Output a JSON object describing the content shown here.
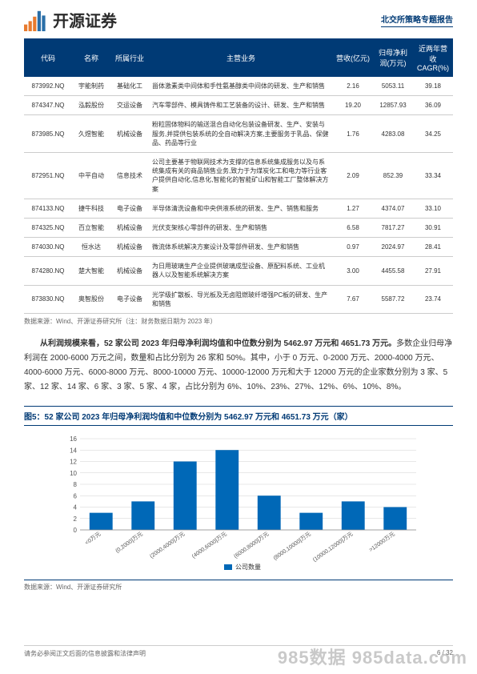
{
  "header": {
    "company_name": "开源证券",
    "report_type": "北交所策略专题报告"
  },
  "table": {
    "columns": [
      "代码",
      "名称",
      "所属行业",
      "主营业务",
      "营收(亿元)",
      "归母净利润(万元)",
      "近两年营收CAGR(%)"
    ],
    "rows": [
      {
        "code": "873992.NQ",
        "name": "宇能制药",
        "ind": "基础化工",
        "biz": "甾体激素类中间体和手性氨基醇类中间体的研发、生产和销售",
        "rev": "2.16",
        "prof": "5053.11",
        "cagr": "39.18"
      },
      {
        "code": "874347.NQ",
        "name": "泓毅股份",
        "ind": "交运设备",
        "biz": "汽车零部件、模具铸件和工艺装备的设计、研发、生产和销售",
        "rev": "19.20",
        "prof": "12857.93",
        "cagr": "36.09"
      },
      {
        "code": "873985.NQ",
        "name": "久煜智能",
        "ind": "机械设备",
        "biz": "粉粒固体物料的输送混合自动化包装设备研发、生产、安装与服务,并提供包装系统的全自动解决方案,主要服务于乳品、保健品、药品等行业",
        "rev": "1.76",
        "prof": "4283.08",
        "cagr": "34.25"
      },
      {
        "code": "872951.NQ",
        "name": "中平自动",
        "ind": "信息技术",
        "biz": "公司主要基于物联网技术为支撑的信息系统集成服务以及与系统集成有关的商品销售业务,致力于为煤炭化工和电力等行业客户提供自动化,信息化,智能化的智能矿山和智能工厂整体解决方案",
        "rev": "2.09",
        "prof": "852.39",
        "cagr": "33.34"
      },
      {
        "code": "874133.NQ",
        "name": "捷牛科技",
        "ind": "电子设备",
        "biz": "半导体清洗设备和中央供液系统的研发、生产、销售和服务",
        "rev": "1.27",
        "prof": "4374.07",
        "cagr": "33.10"
      },
      {
        "code": "874325.NQ",
        "name": "百立智能",
        "ind": "机械设备",
        "biz": "光伏支架核心零部件的研发、生产和销售",
        "rev": "6.58",
        "prof": "7817.27",
        "cagr": "30.91"
      },
      {
        "code": "874030.NQ",
        "name": "恒水达",
        "ind": "机械设备",
        "biz": "微流体系统解决方案设计及零部件研发、生产和销售",
        "rev": "0.97",
        "prof": "2024.97",
        "cagr": "28.41"
      },
      {
        "code": "874280.NQ",
        "name": "楚大智能",
        "ind": "机械设备",
        "biz": "为日用玻璃生产企业提供玻璃成型设备、原配料系统、工业机器人以及智能系统解决方案",
        "rev": "3.00",
        "prof": "4455.58",
        "cagr": "27.91"
      },
      {
        "code": "873830.NQ",
        "name": "奥智股份",
        "ind": "电子设备",
        "biz": "光学级扩散板、导光板及无卤阻燃玻纤增强PC板的研发、生产和销售",
        "rev": "7.67",
        "prof": "5587.72",
        "cagr": "23.74"
      }
    ],
    "source": "数据来源：Wind、开源证券研究所（注：财务数据日期为 2023 年）"
  },
  "paragraph": {
    "lead_bold": "从利润规模来看，52 家公司 2023 年归母净利润均值和中位数分别为 5462.97 万元和 4651.73 万元。",
    "rest": "多数企业归母净利润在 2000-6000 万元之间，数量和占比分别为 26 家和 50%。其中，小于 0 万元、0-2000 万元、2000-4000 万元、4000-6000 万元、6000-8000 万元、8000-10000 万元、10000-12000 万元和大于 12000 万元的企业家数分别为 3 家、5 家、12 家、14 家、6 家、3 家、5 家、4 家，占比分别为 6%、10%、23%、27%、12%、6%、10%、8%。"
  },
  "chart": {
    "title": "图5：52 家公司 2023 年归母净利润均值和中位数分别为 5462.97 万元和 4651.73 万元（家）",
    "type": "bar",
    "categories": [
      "<0万元",
      "(0,2000]万元",
      "(2000,4000]万元",
      "(4000,6000]万元",
      "(6000,8000]万元",
      "(8000,10000]万元",
      "(10000,12000]万元",
      ">12000万元"
    ],
    "values": [
      3,
      5,
      12,
      14,
      6,
      3,
      5,
      4
    ],
    "bar_color": "#0068b7",
    "grid_color": "#d0d0d0",
    "axis_color": "#888888",
    "ylim": [
      0,
      16
    ],
    "ytick_step": 2,
    "legend_label": "公司数量",
    "source": "数据来源：Wind、开源证券研究所"
  },
  "footer": {
    "disclaimer": "请务必参阅正文后面的信息披露和法律声明",
    "page": "6 / 32"
  },
  "watermark": "985数据 985data.com"
}
